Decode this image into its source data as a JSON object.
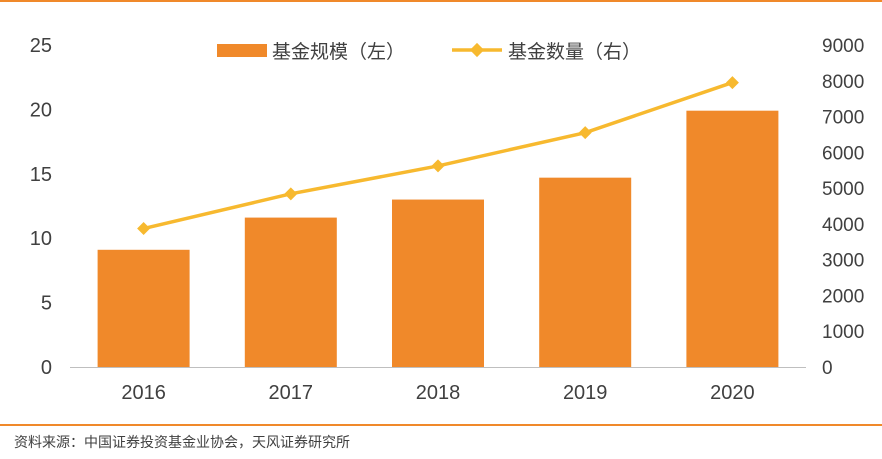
{
  "chart_data": {
    "type": "bar+line",
    "categories": [
      "2016",
      "2017",
      "2018",
      "2019",
      "2020"
    ],
    "series": [
      {
        "name": "基金规模（左）",
        "type": "bar",
        "axis": "left",
        "color": "#f0892a",
        "values": [
          9.1,
          11.6,
          13.0,
          14.7,
          19.9
        ]
      },
      {
        "name": "基金数量（右）",
        "type": "line",
        "axis": "right",
        "color": "#f7b92f",
        "values": [
          3870,
          4840,
          5620,
          6550,
          7950
        ]
      }
    ],
    "y_left": {
      "min": 0,
      "max": 25,
      "ticks": [
        0,
        5,
        10,
        15,
        20,
        25
      ]
    },
    "y_right": {
      "min": 0,
      "max": 9000,
      "ticks": [
        0,
        1000,
        2000,
        3000,
        4000,
        5000,
        6000,
        7000,
        8000,
        9000
      ]
    },
    "legend_position": "top-center",
    "grid": false
  },
  "source_text": "资料来源：中国证券投资基金业协会，天风证券研究所"
}
